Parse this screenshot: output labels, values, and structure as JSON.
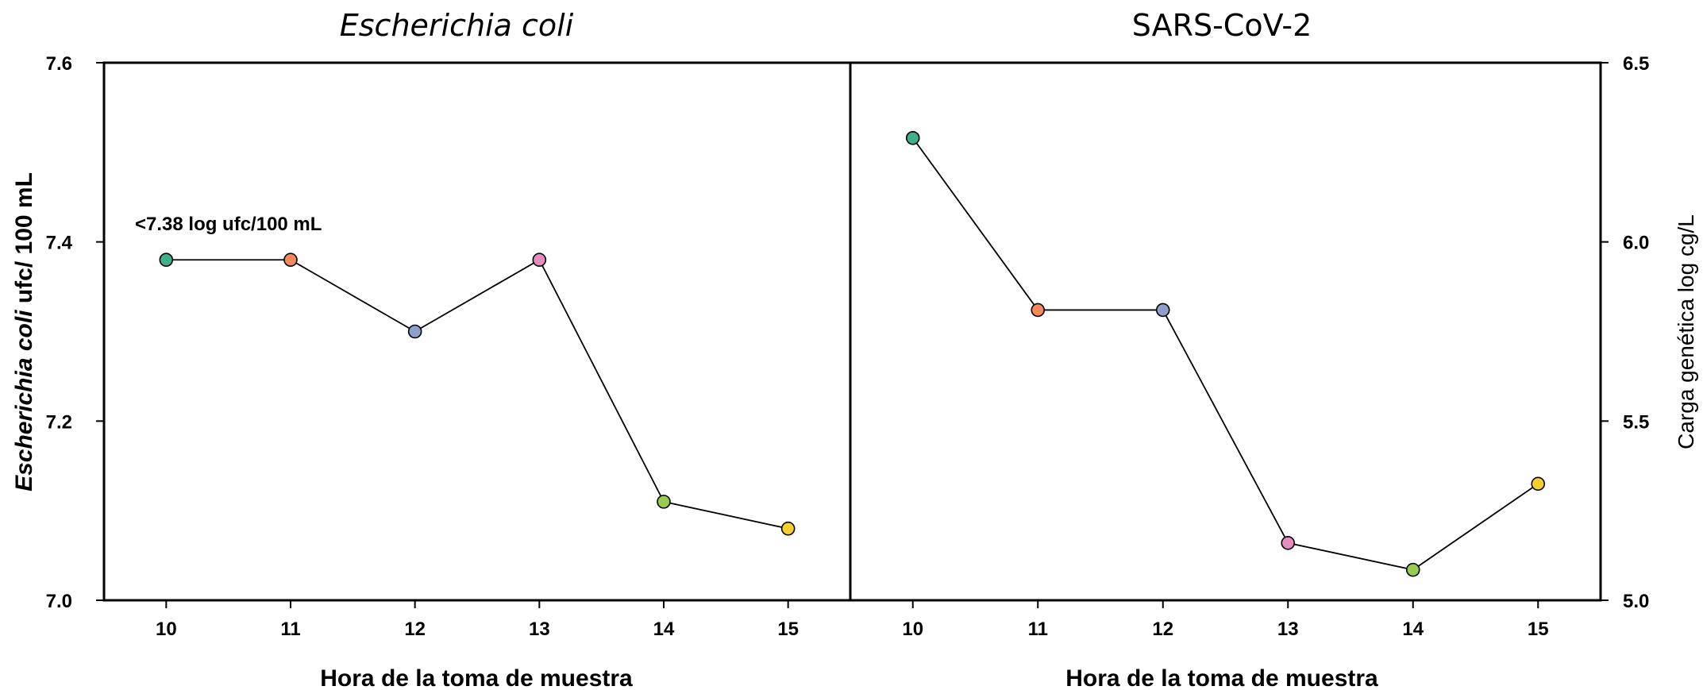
{
  "chart_data": [
    {
      "type": "line",
      "title": "Escherichia coli",
      "xlabel": "Hora de la toma de muestra",
      "ylabel_italic": "Escherichia coli",
      "ylabel_rest": " ufc/ 100 mL",
      "x": [
        10,
        11,
        12,
        13,
        14,
        15
      ],
      "values": [
        7.38,
        7.38,
        7.3,
        7.38,
        7.11,
        7.08
      ],
      "point_colors": [
        "#3fb08a",
        "#f28a5c",
        "#8fa0c8",
        "#e58cc0",
        "#97cc4e",
        "#f7cf2e"
      ],
      "ylim": [
        7.0,
        7.6
      ],
      "yticks": [
        "7.0",
        "7.2",
        "7.4",
        "7.6"
      ],
      "y_axis_side": "left",
      "annotation": "<7.38 log ufc/100 mL"
    },
    {
      "type": "line",
      "title": "SARS-CoV-2",
      "xlabel": "Hora de la toma de muestra",
      "ylabel": "Carga genética log cg/L",
      "x": [
        10,
        11,
        12,
        13,
        14,
        15
      ],
      "values": [
        6.29,
        5.81,
        5.81,
        5.16,
        5.085,
        5.325
      ],
      "point_colors": [
        "#3fb08a",
        "#f28a5c",
        "#8fa0c8",
        "#e58cc0",
        "#97cc4e",
        "#f7cf2e"
      ],
      "ylim": [
        5.0,
        6.5
      ],
      "yticks": [
        "5.0",
        "5.5",
        "6.0",
        "6.5"
      ],
      "y_axis_side": "right"
    }
  ]
}
